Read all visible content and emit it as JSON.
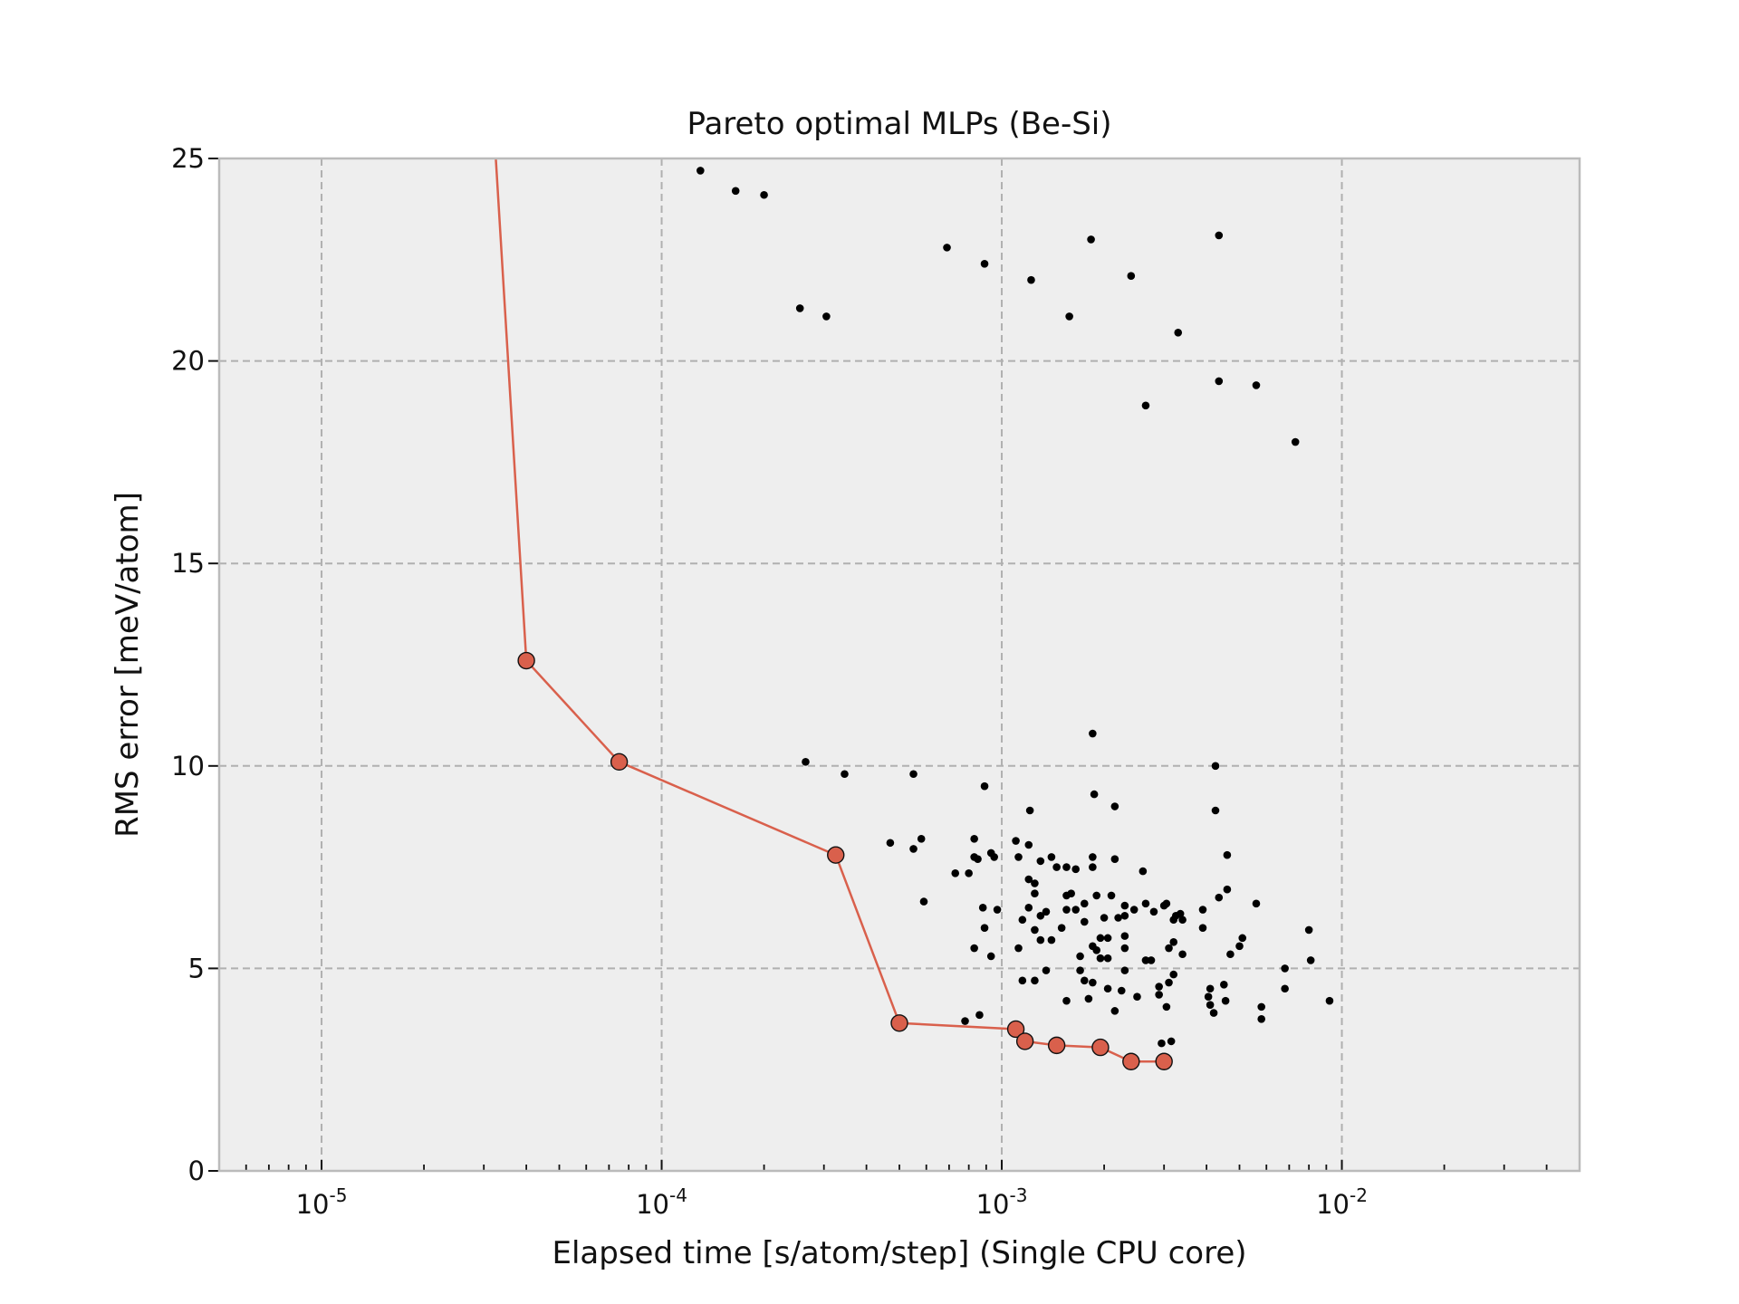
{
  "chart_data": {
    "type": "scatter",
    "title": "Pareto optimal MLPs (Be-Si)",
    "xlabel": "Elapsed time [s/atom/step] (Single CPU core)",
    "ylabel": "RMS error [meV/atom]",
    "x_scale": "log",
    "xlim": [
      5e-06,
      0.05
    ],
    "ylim": [
      0,
      25
    ],
    "grid": true,
    "x_ticks": [
      {
        "value": 1e-05,
        "base": "10",
        "exp": "-5"
      },
      {
        "value": 0.0001,
        "base": "10",
        "exp": "-4"
      },
      {
        "value": 0.001,
        "base": "10",
        "exp": "-3"
      },
      {
        "value": 0.01,
        "base": "10",
        "exp": "-2"
      }
    ],
    "y_ticks": [
      0,
      5,
      10,
      15,
      20,
      25
    ],
    "colors": {
      "pareto": "#d9604c",
      "points": "#000000",
      "background": "#eeeeee",
      "grid": "#b0b0b0"
    },
    "series": [
      {
        "style": "scatter",
        "points": [
          [
            0.00013,
            24.7
          ],
          [
            0.000165,
            24.2
          ],
          [
            0.0002,
            24.1
          ],
          [
            0.000255,
            21.3
          ],
          [
            0.000305,
            21.1
          ],
          [
            0.00069,
            22.8
          ],
          [
            0.00089,
            22.4
          ],
          [
            0.00122,
            22.0
          ],
          [
            0.00158,
            21.1
          ],
          [
            0.00183,
            23.0
          ],
          [
            0.0024,
            22.1
          ],
          [
            0.0033,
            20.7
          ],
          [
            0.00435,
            23.1
          ],
          [
            0.00435,
            19.5
          ],
          [
            0.0056,
            19.4
          ],
          [
            0.00265,
            18.9
          ],
          [
            0.0073,
            18.0
          ],
          [
            0.000265,
            10.1
          ],
          [
            0.000345,
            9.8
          ],
          [
            0.00055,
            9.8
          ],
          [
            0.00185,
            10.8
          ],
          [
            0.00425,
            10.0
          ],
          [
            0.00089,
            9.5
          ],
          [
            0.00187,
            9.3
          ],
          [
            0.00121,
            8.9
          ],
          [
            0.00215,
            9.0
          ],
          [
            0.00425,
            8.9
          ],
          [
            0.00047,
            8.1
          ],
          [
            0.00058,
            8.2
          ],
          [
            0.00055,
            7.95
          ],
          [
            0.00083,
            8.2
          ],
          [
            0.00083,
            7.75
          ],
          [
            0.00085,
            7.7
          ],
          [
            0.00093,
            7.85
          ],
          [
            0.00095,
            7.75
          ],
          [
            0.0011,
            8.15
          ],
          [
            0.0012,
            8.05
          ],
          [
            0.00112,
            7.75
          ],
          [
            0.0013,
            7.65
          ],
          [
            0.0014,
            7.75
          ],
          [
            0.00145,
            7.5
          ],
          [
            0.00155,
            7.5
          ],
          [
            0.00165,
            7.45
          ],
          [
            0.00185,
            7.75
          ],
          [
            0.00185,
            7.5
          ],
          [
            0.00215,
            7.7
          ],
          [
            0.0026,
            7.4
          ],
          [
            0.0046,
            7.8
          ],
          [
            0.00073,
            7.35
          ],
          [
            0.0008,
            7.35
          ],
          [
            0.0012,
            7.2
          ],
          [
            0.00125,
            7.1
          ],
          [
            0.00059,
            6.65
          ],
          [
            0.00088,
            6.5
          ],
          [
            0.00097,
            6.45
          ],
          [
            0.00125,
            6.85
          ],
          [
            0.00155,
            6.8
          ],
          [
            0.0016,
            6.85
          ],
          [
            0.00175,
            6.6
          ],
          [
            0.0019,
            6.8
          ],
          [
            0.0021,
            6.8
          ],
          [
            0.0023,
            6.55
          ],
          [
            0.00245,
            6.45
          ],
          [
            0.00265,
            6.6
          ],
          [
            0.0028,
            6.4
          ],
          [
            0.003,
            6.55
          ],
          [
            0.00305,
            6.6
          ],
          [
            0.00325,
            6.3
          ],
          [
            0.00335,
            6.35
          ],
          [
            0.0039,
            6.45
          ],
          [
            0.00435,
            6.75
          ],
          [
            0.0046,
            6.95
          ],
          [
            0.0056,
            6.6
          ],
          [
            0.0012,
            6.5
          ],
          [
            0.00135,
            6.4
          ],
          [
            0.00115,
            6.2
          ],
          [
            0.0013,
            6.3
          ],
          [
            0.00155,
            6.45
          ],
          [
            0.00165,
            6.45
          ],
          [
            0.00175,
            6.15
          ],
          [
            0.002,
            6.25
          ],
          [
            0.0022,
            6.25
          ],
          [
            0.0023,
            6.3
          ],
          [
            0.0032,
            6.2
          ],
          [
            0.0034,
            6.2
          ],
          [
            0.0039,
            6.0
          ],
          [
            0.00089,
            6.0
          ],
          [
            0.00125,
            5.95
          ],
          [
            0.0015,
            6.0
          ],
          [
            0.00195,
            5.75
          ],
          [
            0.00205,
            5.75
          ],
          [
            0.0023,
            5.8
          ],
          [
            0.0032,
            5.65
          ],
          [
            0.0031,
            5.5
          ],
          [
            0.0013,
            5.7
          ],
          [
            0.0014,
            5.7
          ],
          [
            0.00185,
            5.55
          ],
          [
            0.0019,
            5.45
          ],
          [
            0.00195,
            5.25
          ],
          [
            0.00205,
            5.25
          ],
          [
            0.0017,
            5.3
          ],
          [
            0.0023,
            5.5
          ],
          [
            0.00265,
            5.2
          ],
          [
            0.00275,
            5.2
          ],
          [
            0.0034,
            5.35
          ],
          [
            0.0047,
            5.35
          ],
          [
            0.005,
            5.55
          ],
          [
            0.0051,
            5.75
          ],
          [
            0.008,
            5.95
          ],
          [
            0.00083,
            5.5
          ],
          [
            0.00093,
            5.3
          ],
          [
            0.00112,
            5.5
          ],
          [
            0.00135,
            4.95
          ],
          [
            0.0017,
            4.95
          ],
          [
            0.0023,
            4.95
          ],
          [
            0.0032,
            4.85
          ],
          [
            0.0068,
            5.0
          ],
          [
            0.0081,
            5.2
          ],
          [
            0.00115,
            4.7
          ],
          [
            0.00125,
            4.7
          ],
          [
            0.00175,
            4.7
          ],
          [
            0.00185,
            4.65
          ],
          [
            0.00205,
            4.5
          ],
          [
            0.00225,
            4.45
          ],
          [
            0.0025,
            4.3
          ],
          [
            0.0029,
            4.55
          ],
          [
            0.0031,
            4.65
          ],
          [
            0.0041,
            4.5
          ],
          [
            0.0045,
            4.6
          ],
          [
            0.0068,
            4.5
          ],
          [
            0.00155,
            4.2
          ],
          [
            0.0018,
            4.25
          ],
          [
            0.0029,
            4.35
          ],
          [
            0.00305,
            4.05
          ],
          [
            0.00405,
            4.3
          ],
          [
            0.0041,
            4.1
          ],
          [
            0.00455,
            4.2
          ],
          [
            0.0058,
            4.05
          ],
          [
            0.0058,
            3.75
          ],
          [
            0.0092,
            4.2
          ],
          [
            0.0042,
            3.9
          ],
          [
            0.00078,
            3.7
          ],
          [
            0.00086,
            3.85
          ],
          [
            0.00215,
            3.95
          ],
          [
            0.00295,
            3.15
          ],
          [
            0.00315,
            3.2
          ]
        ]
      },
      {
        "style": "line-markers",
        "points": [
          [
            3.2e-05,
            26.0
          ],
          [
            4e-05,
            12.6
          ],
          [
            7.5e-05,
            10.1
          ],
          [
            0.000325,
            7.8
          ],
          [
            0.0005,
            3.65
          ],
          [
            0.0011,
            3.5
          ],
          [
            0.00117,
            3.2
          ],
          [
            0.00145,
            3.1
          ],
          [
            0.00195,
            3.05
          ],
          [
            0.0024,
            2.7
          ],
          [
            0.003,
            2.7
          ]
        ],
        "marker_from": 1
      }
    ]
  }
}
